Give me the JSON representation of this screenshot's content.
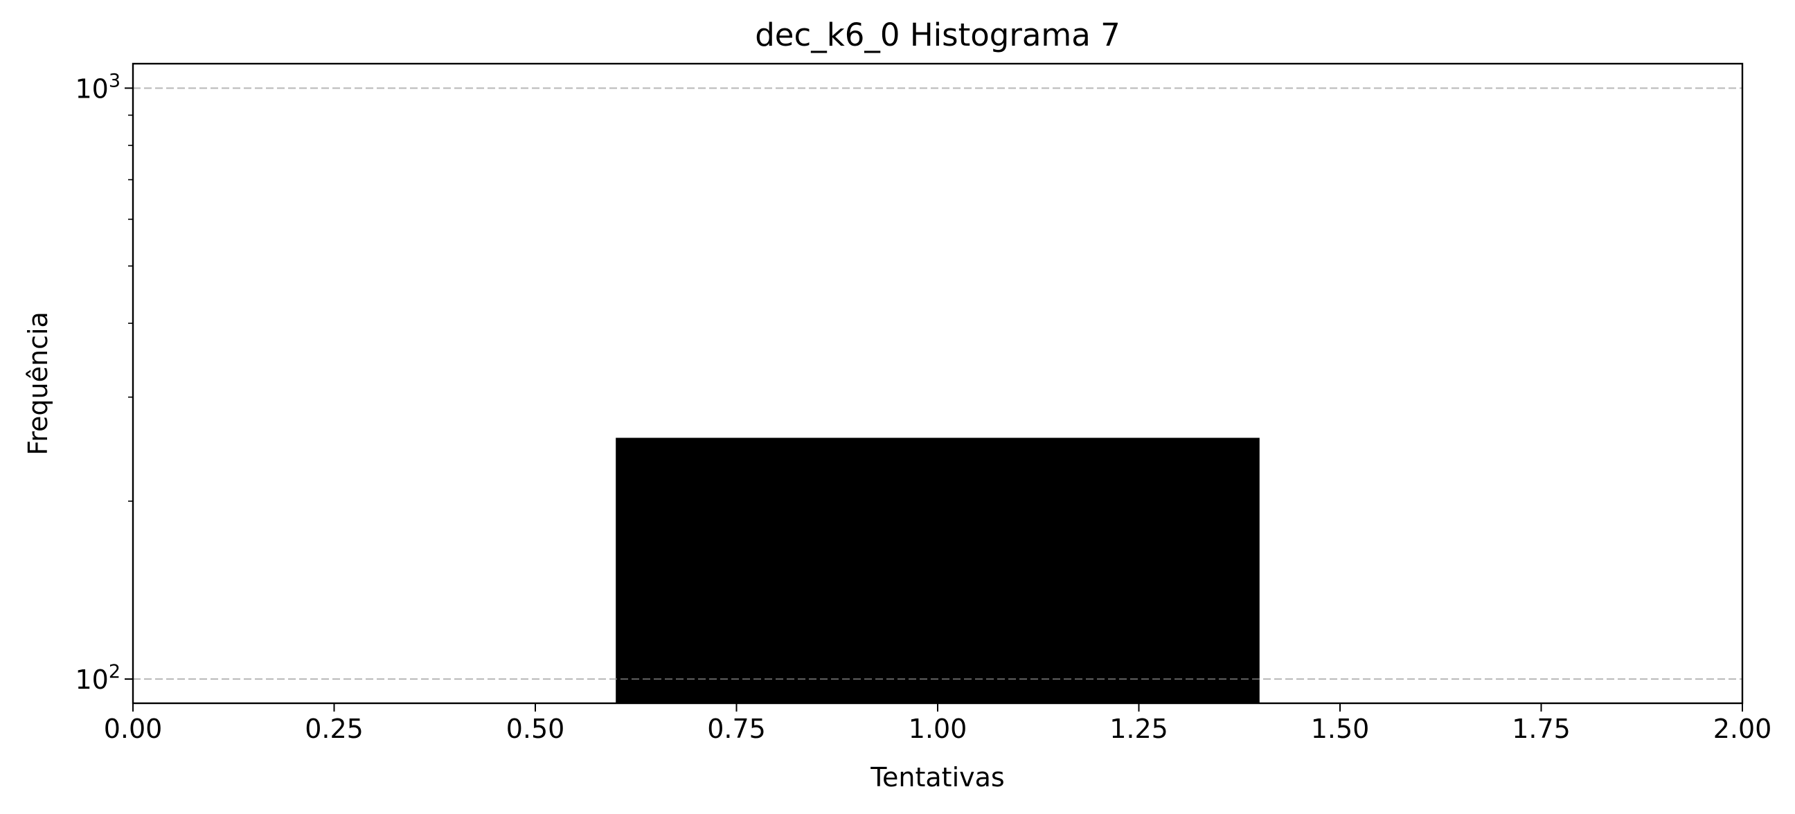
{
  "chart_data": {
    "type": "bar",
    "title": "dec_k6_0 Histograma 7",
    "xlabel": "Tentativas",
    "ylabel": "Frequência",
    "xlim": [
      0,
      2
    ],
    "ylim": [
      91,
      1100
    ],
    "yscale": "log",
    "x_ticks": [
      "0.00",
      "0.25",
      "0.50",
      "0.75",
      "1.00",
      "1.25",
      "1.50",
      "1.75",
      "2.00"
    ],
    "y_ticks": [
      {
        "value": 100,
        "base": "10",
        "exp": "2"
      },
      {
        "value": 1000,
        "base": "10",
        "exp": "3"
      }
    ],
    "grid": "horizontal dashed",
    "bars": [
      {
        "x_start": 0.6,
        "x_end": 1.4,
        "value": 256,
        "color": "#000000"
      }
    ]
  }
}
